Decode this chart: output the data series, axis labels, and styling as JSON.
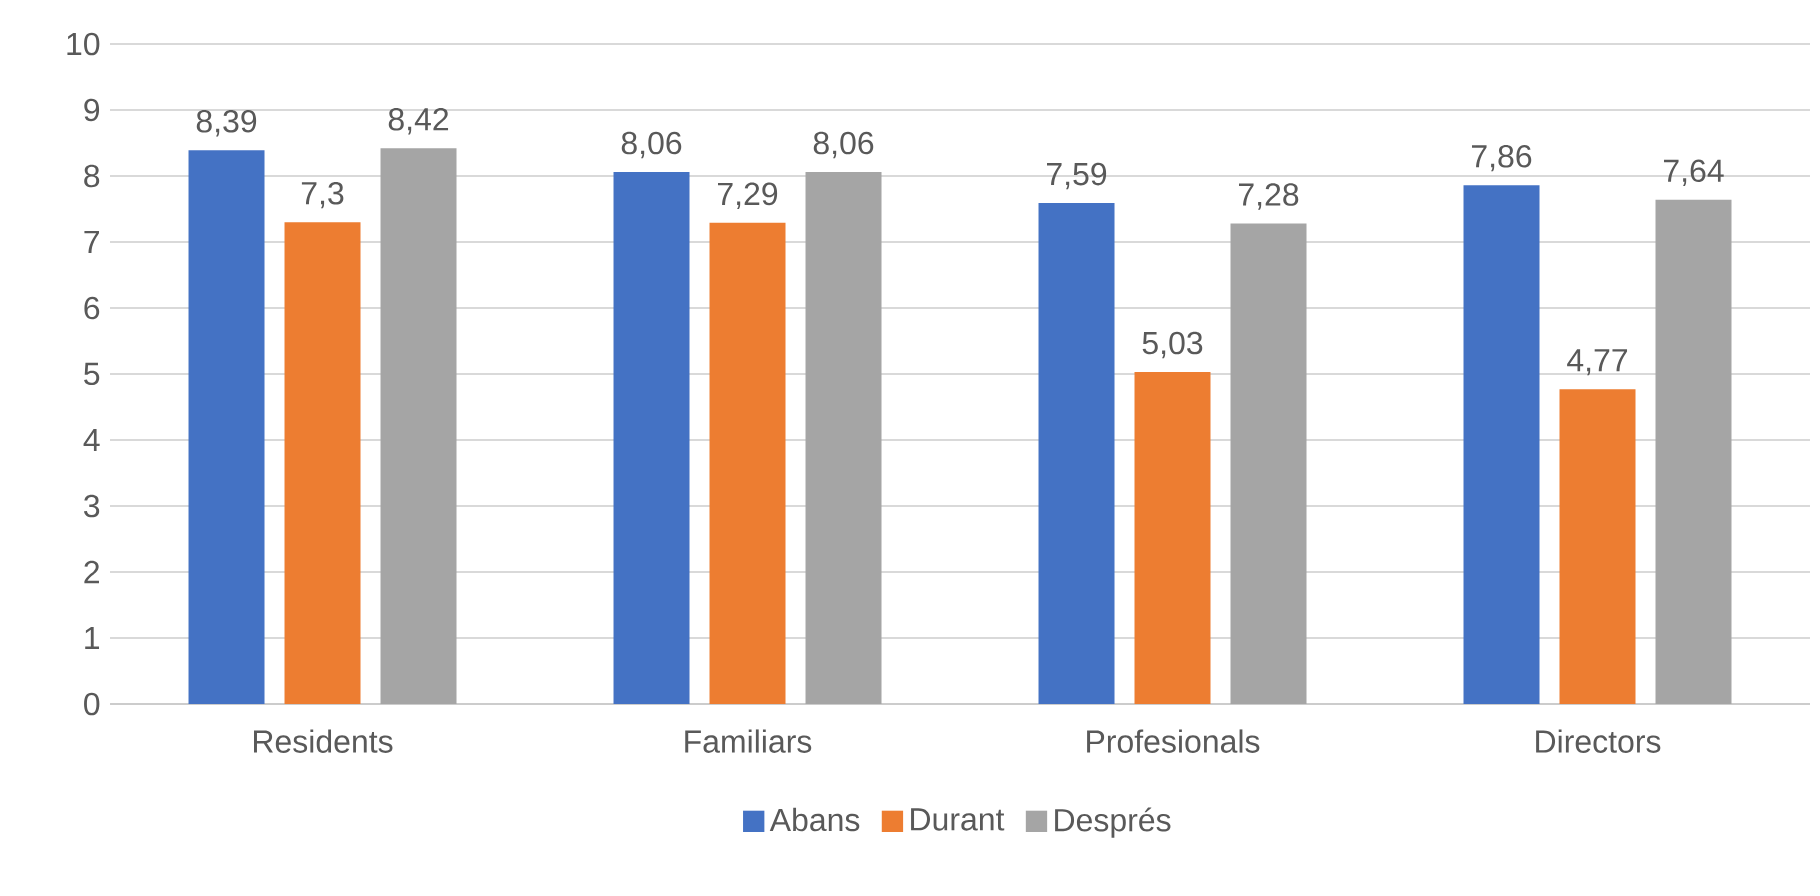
{
  "chart_data": {
    "type": "bar",
    "categories": [
      "Residents",
      "Familiars",
      "Profesionals",
      "Directors"
    ],
    "series": [
      {
        "name": "Abans",
        "color": "#4472c4",
        "values": [
          8.39,
          8.06,
          7.59,
          7.86
        ],
        "value_labels": [
          "8,39",
          "8,06",
          "7,59",
          "7,86"
        ]
      },
      {
        "name": "Durant",
        "color": "#ed7d31",
        "values": [
          7.3,
          7.29,
          5.03,
          4.77
        ],
        "value_labels": [
          "7,3",
          "7,29",
          "5,03",
          "4,77"
        ]
      },
      {
        "name": "Després",
        "color": "#a5a5a5",
        "values": [
          8.42,
          8.06,
          7.28,
          7.64
        ],
        "value_labels": [
          "8,42",
          "8,06",
          "7,28",
          "7,64"
        ]
      }
    ],
    "ylim": [
      0,
      10
    ],
    "yticks": [
      0,
      1,
      2,
      3,
      4,
      5,
      6,
      7,
      8,
      9,
      10
    ],
    "grid": "y",
    "legend": "bottom"
  }
}
